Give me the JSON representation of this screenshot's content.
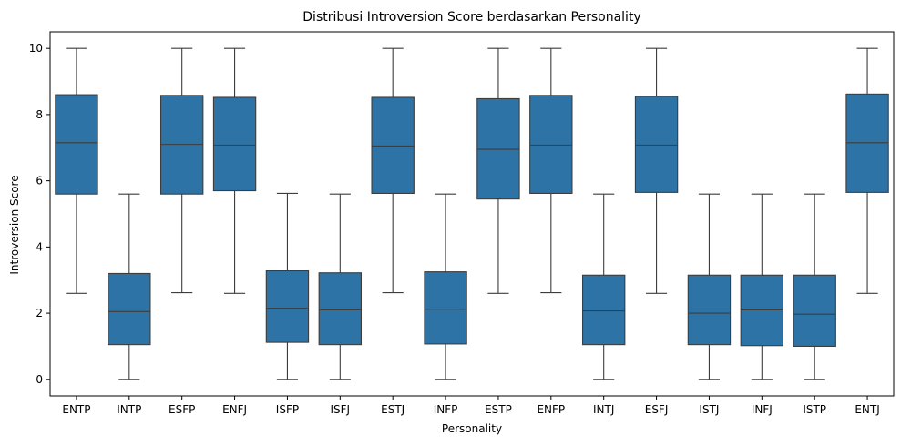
{
  "chart_data": {
    "type": "boxplot",
    "title": "Distribusi Introversion Score berdasarkan Personality",
    "xlabel": "Personality",
    "ylabel": "Introversion Score",
    "ylim": [
      -0.5,
      10.5
    ],
    "yticks": [
      "0",
      "2",
      "4",
      "6",
      "8",
      "10"
    ],
    "grid": false,
    "box_color": "#2e73a6",
    "line_color": "#3d3d3d",
    "categories": [
      "ENTP",
      "INTP",
      "ESFP",
      "ENFJ",
      "ISFP",
      "ISFJ",
      "ESTJ",
      "INFP",
      "ESTP",
      "ENFP",
      "INTJ",
      "ESFJ",
      "ISTJ",
      "INFJ",
      "ISTP",
      "ENTJ"
    ],
    "boxes": [
      {
        "min": 2.6,
        "q1": 5.6,
        "median": 7.15,
        "q3": 8.6,
        "max": 10
      },
      {
        "min": 0,
        "q1": 1.05,
        "median": 2.05,
        "q3": 3.2,
        "max": 5.6
      },
      {
        "min": 2.62,
        "q1": 5.6,
        "median": 7.1,
        "q3": 8.58,
        "max": 10
      },
      {
        "min": 2.6,
        "q1": 5.7,
        "median": 7.08,
        "q3": 8.52,
        "max": 10
      },
      {
        "min": 0,
        "q1": 1.12,
        "median": 2.15,
        "q3": 3.28,
        "max": 5.62
      },
      {
        "min": 0,
        "q1": 1.05,
        "median": 2.1,
        "q3": 3.22,
        "max": 5.6
      },
      {
        "min": 2.62,
        "q1": 5.62,
        "median": 7.05,
        "q3": 8.52,
        "max": 10
      },
      {
        "min": 0,
        "q1": 1.07,
        "median": 2.12,
        "q3": 3.25,
        "max": 5.6
      },
      {
        "min": 2.6,
        "q1": 5.45,
        "median": 6.95,
        "q3": 8.48,
        "max": 10
      },
      {
        "min": 2.62,
        "q1": 5.62,
        "median": 7.08,
        "q3": 8.58,
        "max": 10
      },
      {
        "min": 0,
        "q1": 1.05,
        "median": 2.07,
        "q3": 3.15,
        "max": 5.6
      },
      {
        "min": 2.6,
        "q1": 5.65,
        "median": 7.08,
        "q3": 8.55,
        "max": 10
      },
      {
        "min": 0,
        "q1": 1.05,
        "median": 2.0,
        "q3": 3.15,
        "max": 5.6
      },
      {
        "min": 0,
        "q1": 1.02,
        "median": 2.1,
        "q3": 3.15,
        "max": 5.6
      },
      {
        "min": 0,
        "q1": 1.0,
        "median": 1.97,
        "q3": 3.15,
        "max": 5.6
      },
      {
        "min": 2.6,
        "q1": 5.65,
        "median": 7.15,
        "q3": 8.62,
        "max": 10
      }
    ]
  }
}
